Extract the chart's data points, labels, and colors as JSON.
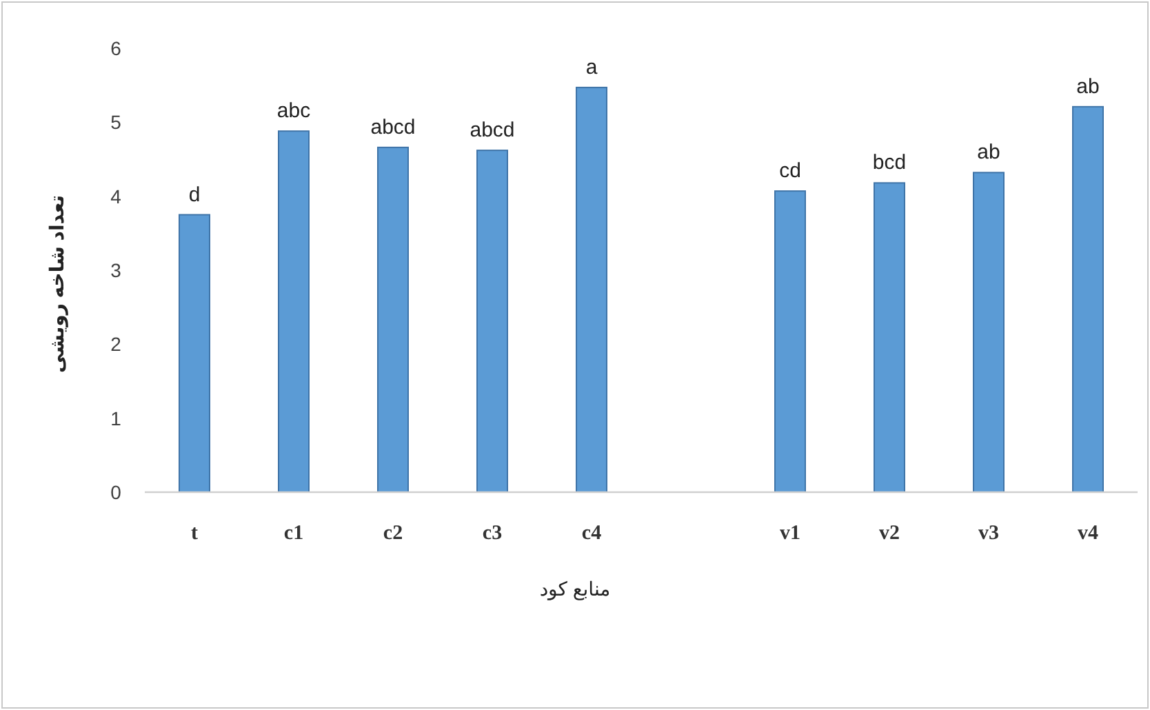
{
  "chart_data": {
    "type": "bar",
    "xlabel": "منابع کود",
    "ylabel": "تعداد شاخه رویشی",
    "categories": [
      "t",
      "c1",
      "c2",
      "c3",
      "c4",
      null,
      "v1",
      "v2",
      "v3",
      "v4"
    ],
    "values": [
      3.75,
      4.88,
      4.66,
      4.62,
      5.47,
      null,
      4.07,
      4.18,
      4.32,
      5.21
    ],
    "value_labels": [
      "d",
      "abc",
      "abcd",
      "abcd",
      "a",
      null,
      "cd",
      "bcd",
      "ab",
      "ab"
    ],
    "color": "#5b9bd5",
    "ylim": [
      0,
      6
    ],
    "yticks": [
      0,
      1,
      2,
      3,
      4,
      5,
      6
    ],
    "grid": false
  }
}
